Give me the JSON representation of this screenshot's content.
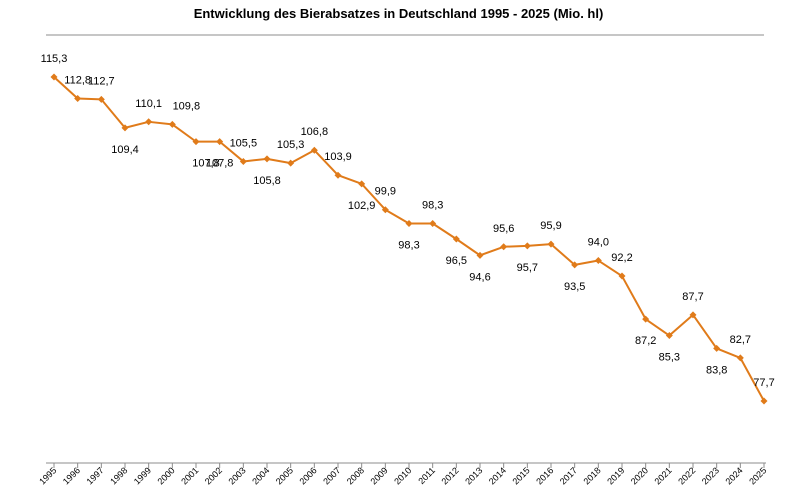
{
  "chart_data": {
    "type": "line",
    "title": "Entwicklung des Bierabsatzes in Deutschland 1995 - 2025 (Mio. hl)",
    "categories": [
      "1995",
      "1996",
      "1997",
      "1998",
      "1999",
      "2000",
      "2001",
      "2002",
      "2003",
      "2004",
      "2005",
      "2006",
      "2007",
      "2008",
      "2009",
      "2010",
      "2011",
      "2012",
      "2013",
      "2014",
      "2015",
      "2016",
      "2017",
      "2018",
      "2019",
      "2020",
      "2021",
      "2022",
      "2023",
      "2024",
      "2025"
    ],
    "series": [
      {
        "values": [
          115.3,
          112.8,
          112.7,
          109.4,
          110.1,
          109.8,
          107.8,
          107.8,
          105.5,
          105.8,
          105.3,
          106.8,
          103.9,
          102.9,
          99.9,
          98.3,
          98.3,
          96.5,
          94.6,
          95.6,
          95.7,
          95.9,
          93.5,
          94.0,
          92.2,
          87.2,
          85.3,
          87.7,
          83.8,
          82.7,
          77.7
        ],
        "labels": [
          "115,3",
          "112,8",
          "112,7",
          "109,4",
          "110,1",
          "109,8",
          "107,8",
          "107,8",
          "105,5",
          "105,8",
          "105,3",
          "106,8",
          "103,9",
          "102,9",
          "99,9",
          "98,3",
          "98,3",
          "96,5",
          "94,6",
          "95,6",
          "95,7",
          "95,9",
          "93,5",
          "94,0",
          "92,2",
          "87,2",
          "85,3",
          "87,7",
          "83,8",
          "82,7",
          "77,7"
        ],
        "color": "#e07b1a"
      }
    ],
    "xlabel": "",
    "ylabel": "",
    "ylim": [
      70,
      120
    ],
    "grid": false,
    "legend": "none"
  }
}
